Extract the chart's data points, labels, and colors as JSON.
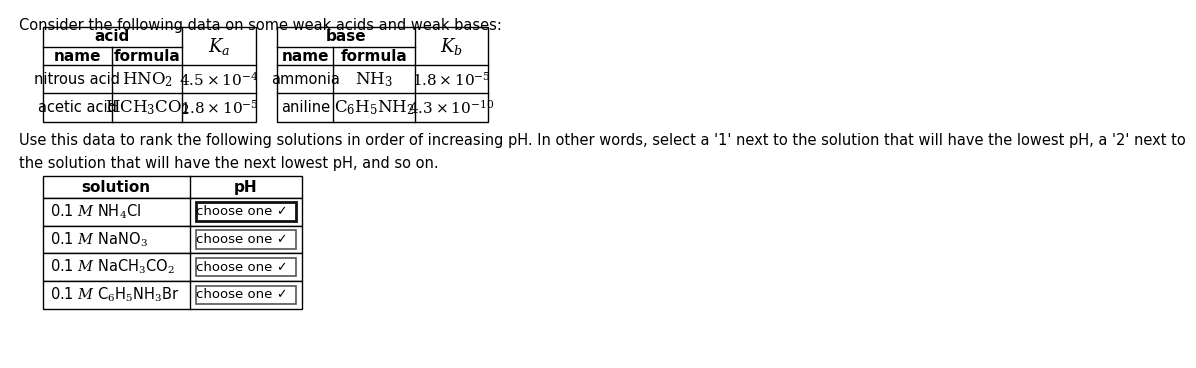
{
  "title_text": "Consider the following data on some weak acids and weak bases:",
  "background_color": "#ffffff",
  "paragraph_text": "Use this data to rank the following solutions in order of increasing pH. In other words, select a '1' next to the solution that will have the lowest pH, a '2' next to\nthe solution that will have the next lowest pH, and so on.",
  "acid_header": "acid",
  "ka_header": "$K_a$",
  "acid_col_headers": [
    "name",
    "formula"
  ],
  "acid_rows": [
    {
      "name": "nitrous acid",
      "formula": "$\\mathrm{HNO_2}$",
      "ka": "$4.5 \\times 10^{-4}$"
    },
    {
      "name": "acetic acid",
      "formula": "$\\mathrm{HCH_3CO_2}$",
      "ka": "$1.8 \\times 10^{-5}$"
    }
  ],
  "base_header": "base",
  "kb_header": "$K_b$",
  "base_col_headers": [
    "name",
    "formula"
  ],
  "base_rows": [
    {
      "name": "ammonia",
      "formula": "$\\mathrm{NH_3}$",
      "kb": "$1.8 \\times 10^{-5}$"
    },
    {
      "name": "aniline",
      "formula": "$\\mathrm{C_6H_5NH_2}$",
      "kb": "$4.3 \\times 10^{-10}$"
    }
  ],
  "sol_headers": [
    "solution",
    "pH"
  ],
  "sol_labels": [
    "0.1 $M$ NH$_4$Cl",
    "0.1 $M$ NaNO$_3$",
    "0.1 $M$ NaCH$_3$CO$_2$",
    "0.1 $M$ C$_6$H$_5$NH$_3$Br"
  ],
  "line_color": "#000000",
  "text_color": "#000000"
}
